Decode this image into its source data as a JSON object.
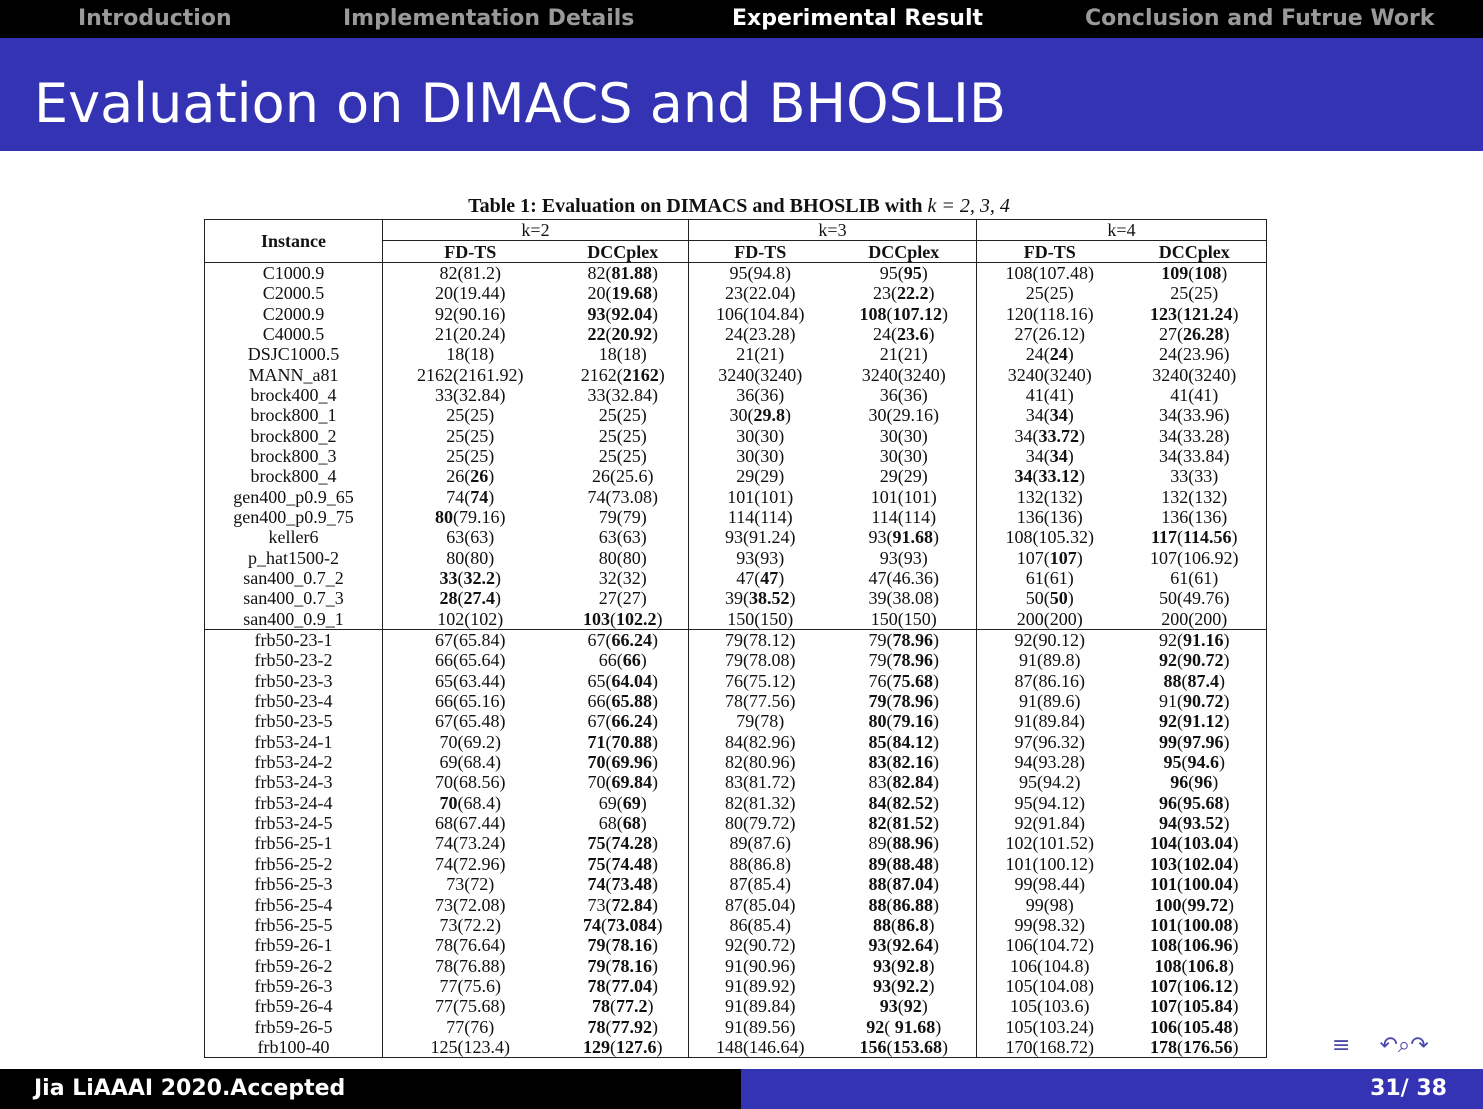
{
  "nav": [
    {
      "label": "Introduction",
      "active": false
    },
    {
      "label": "Implementation Details",
      "active": false
    },
    {
      "label": "Experimental Result",
      "active": true
    },
    {
      "label": "Conclusion and Futrue Work",
      "active": false
    }
  ],
  "slide_title": "Evaluation on DIMACS and BHOSLIB",
  "table": {
    "caption": "Table 1: Evaluation on DIMACS and BHOSLIB with",
    "caption_math": "k = 2, 3, 4",
    "instance_header": "Instance",
    "groups": [
      "k=2",
      "k=3",
      "k=4"
    ],
    "subheaders": [
      "FD-TS",
      "DCCplex",
      "FD-TS",
      "DCCplex",
      "FD-TS",
      "DCCplex"
    ],
    "rows": [
      [
        "C1000.9",
        "82(81.2)",
        "82(**81.88**)",
        "95(94.8)",
        "95(**95**)",
        "108(107.48)",
        "**109**(**108**)"
      ],
      [
        "C2000.5",
        "20(19.44)",
        "20(**19.68**)",
        "23(22.04)",
        "23(**22.2**)",
        "25(25)",
        "25(25)"
      ],
      [
        "C2000.9",
        "92(90.16)",
        "**93**(**92.04**)",
        "106(104.84)",
        "**108**(**107.12**)",
        "120(118.16)",
        "**123**(**121.24**)"
      ],
      [
        "C4000.5",
        "21(20.24)",
        "**22**(**20.92**)",
        "24(23.28)",
        "24(**23.6**)",
        "27(26.12)",
        "27(**26.28**)"
      ],
      [
        "DSJC1000.5",
        "18(18)",
        "18(18)",
        "21(21)",
        "21(21)",
        "24(**24**)",
        "24(23.96)"
      ],
      [
        "MANN_a81",
        "2162(2161.92)",
        "2162(**2162**)",
        "3240(3240)",
        "3240(3240)",
        "3240(3240)",
        "3240(3240)"
      ],
      [
        "brock400_4",
        "33(32.84)",
        "33(32.84)",
        "36(36)",
        "36(36)",
        "41(41)",
        "41(41)"
      ],
      [
        "brock800_1",
        "25(25)",
        "25(25)",
        "30(**29.8**)",
        "30(29.16)",
        "34(**34**)",
        "34(33.96)"
      ],
      [
        "brock800_2",
        "25(25)",
        "25(25)",
        "30(30)",
        "30(30)",
        "34(**33.72**)",
        "34(33.28)"
      ],
      [
        "brock800_3",
        "25(25)",
        "25(25)",
        "30(30)",
        "30(30)",
        "34(**34**)",
        "34(33.84)"
      ],
      [
        "brock800_4",
        "26(**26**)",
        "26(25.6)",
        "29(29)",
        "29(29)",
        "**34**(**33.12**)",
        "33(33)"
      ],
      [
        "gen400_p0.9_65",
        "74(**74**)",
        "74(73.08)",
        "101(101)",
        "101(101)",
        "132(132)",
        "132(132)"
      ],
      [
        "gen400_p0.9_75",
        "**80**(79.16)",
        "79(79)",
        "114(114)",
        "114(114)",
        "136(136)",
        "136(136)"
      ],
      [
        "keller6",
        "63(63)",
        "63(63)",
        "93(91.24)",
        "93(**91.68**)",
        "108(105.32)",
        "**117**(**114.56**)"
      ],
      [
        "p_hat1500-2",
        "80(80)",
        "80(80)",
        "93(93)",
        "93(93)",
        "107(**107**)",
        "107(106.92)"
      ],
      [
        "san400_0.7_2",
        "**33**(**32.2**)",
        "32(32)",
        "47(**47**)",
        "47(46.36)",
        "61(61)",
        "61(61)"
      ],
      [
        "san400_0.7_3",
        "**28**(**27.4**)",
        "27(27)",
        "39(**38.52**)",
        "39(38.08)",
        "50(**50**)",
        "50(49.76)"
      ],
      [
        "san400_0.9_1",
        "102(102)",
        "**103**(**102.2**)",
        "150(150)",
        "150(150)",
        "200(200)",
        "200(200)"
      ],
      [
        "frb50-23-1",
        "67(65.84)",
        "67(**66.24**)",
        "79(78.12)",
        "79(**78.96**)",
        "92(90.12)",
        "92(**91.16**)"
      ],
      [
        "frb50-23-2",
        "66(65.64)",
        "66(**66**)",
        "79(78.08)",
        "79(**78.96**)",
        "91(89.8)",
        "**92**(**90.72**)"
      ],
      [
        "frb50-23-3",
        "65(63.44)",
        "65(**64.04**)",
        "76(75.12)",
        "76(**75.68**)",
        "87(86.16)",
        "**88**(**87.4**)"
      ],
      [
        "frb50-23-4",
        "66(65.16)",
        "66(**65.88**)",
        "78(77.56)",
        "**79**(**78.96**)",
        "91(89.6)",
        "91(**90.72**)"
      ],
      [
        "frb50-23-5",
        "67(65.48)",
        "67(**66.24**)",
        "79(78)",
        "**80**(**79.16**)",
        "91(89.84)",
        "**92**(**91.12**)"
      ],
      [
        "frb53-24-1",
        "70(69.2)",
        "**71**(**70.88**)",
        "84(82.96)",
        "**85**(**84.12**)",
        "97(96.32)",
        "**99**(**97.96**)"
      ],
      [
        "frb53-24-2",
        "69(68.4)",
        "**70**(**69.96**)",
        "82(80.96)",
        "**83**(**82.16**)",
        "94(93.28)",
        "**95**(**94.6**)"
      ],
      [
        "frb53-24-3",
        "70(68.56)",
        "70(**69.84**)",
        "83(81.72)",
        "83(**82.84**)",
        "95(94.2)",
        "**96**(**96**)"
      ],
      [
        "frb53-24-4",
        "**70**(68.4)",
        "69(**69**)",
        "82(81.32)",
        "**84**(**82.52**)",
        "95(94.12)",
        "**96**(**95.68**)"
      ],
      [
        "frb53-24-5",
        "68(67.44)",
        "68(**68**)",
        "80(79.72)",
        "**82**(**81.52**)",
        "92(91.84)",
        "**94**(**93.52**)"
      ],
      [
        "frb56-25-1",
        "74(73.24)",
        "**75**(**74.28**)",
        "89(87.6)",
        "89(**88.96**)",
        "102(101.52)",
        "**104**(**103.04**)"
      ],
      [
        "frb56-25-2",
        "74(72.96)",
        "**75**(**74.48**)",
        "88(86.8)",
        "**89**(**88.48**)",
        "101(100.12)",
        "**103**(**102.04**)"
      ],
      [
        "frb56-25-3",
        "73(72)",
        "**74**(**73.48**)",
        "87(85.4)",
        "**88**(**87.04**)",
        "99(98.44)",
        "**101**(**100.04**)"
      ],
      [
        "frb56-25-4",
        "73(72.08)",
        "73(**72.84**)",
        "87(85.04)",
        "**88**(**86.88**)",
        "99(98)",
        "**100**(**99.72**)"
      ],
      [
        "frb56-25-5",
        "73(72.2)",
        "**74**(**73.084**)",
        "86(85.4)",
        "**88**(**86.8**)",
        "99(98.32)",
        "**101**(**100.08**)"
      ],
      [
        "frb59-26-1",
        "78(76.64)",
        "**79**(**78.16**)",
        "92(90.72)",
        "**93**(**92.64**)",
        "106(104.72)",
        "**108**(**106.96**)"
      ],
      [
        "frb59-26-2",
        "78(76.88)",
        "**79**(**78.16**)",
        "91(90.96)",
        "**93**(**92.8**)",
        "106(104.8)",
        "**108**(**106.8**)"
      ],
      [
        "frb59-26-3",
        "77(75.6)",
        "**78**(**77.04**)",
        "91(89.92)",
        "**93**(**92.2**)",
        "105(104.08)",
        "**107**(**106.12**)"
      ],
      [
        "frb59-26-4",
        "77(75.68)",
        "**78**(**77.2**)",
        "91(89.84)",
        "**93**(**92**)",
        "105(103.6)",
        "**107**(**105.84**)"
      ],
      [
        "frb59-26-5",
        "77(76)",
        "**78**(**77.92**)",
        "91(89.56)",
        "**92**( **91.68**)",
        "105(103.24)",
        "**106**(**105.48**)"
      ],
      [
        "frb100-40",
        "125(123.4)",
        "**129**(**127.6**)",
        "148(146.64)",
        "**156**(**153.68**)",
        "170(168.72)",
        "**178**(**176.56**)"
      ]
    ],
    "section_break_after": 18
  },
  "footer": {
    "left": "Jia LiAAAI 2020.Accepted",
    "right": "31/ 38"
  },
  "nav_icons": [
    "section-nav-icon",
    "search-nav-icon"
  ],
  "colors": {
    "title_bar": "#3333b3",
    "top_nav": "#000000",
    "nav_active": "#ffffff",
    "nav_inactive": "#9a9a9a"
  }
}
